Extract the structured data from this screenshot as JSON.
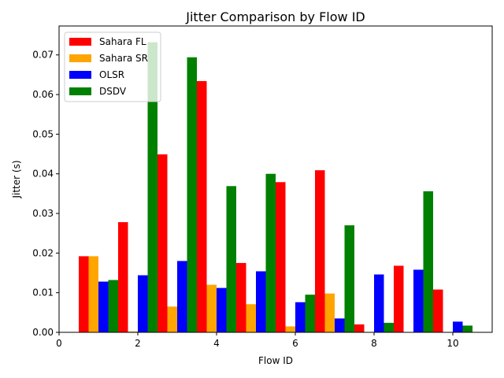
{
  "chart_data": {
    "type": "bar",
    "title": "Jitter Comparison by Flow ID",
    "xlabel": "Flow ID",
    "ylabel": "Jitter (s)",
    "xlim": [
      0,
      11
    ],
    "ylim": [
      0,
      0.0773
    ],
    "xticks": [
      0,
      2,
      4,
      6,
      8,
      10
    ],
    "xtick_labels": [
      "0",
      "2",
      "4",
      "6",
      "8",
      "10"
    ],
    "yticks": [
      0,
      0.01,
      0.02,
      0.03,
      0.04,
      0.05,
      0.06,
      0.07
    ],
    "ytick_labels": [
      "0.00",
      "0.01",
      "0.02",
      "0.03",
      "0.04",
      "0.05",
      "0.06",
      "0.07"
    ],
    "x": [
      1,
      2,
      3,
      4,
      5,
      6,
      7,
      8,
      9,
      10
    ],
    "bar_width": 0.25,
    "grid": false,
    "legend_position": "top-left",
    "series": [
      {
        "name": "Sahara FL",
        "color": "#ff0000",
        "values": [
          0.0192,
          0.0278,
          0.0449,
          0.0634,
          0.0175,
          0.0379,
          0.0409,
          0.002,
          0.0168,
          0.0108
        ]
      },
      {
        "name": "Sahara SR",
        "color": "#ffa500",
        "values": [
          0.0192,
          0.0002,
          0.0065,
          0.012,
          0.0071,
          0.0015,
          0.0098,
          0.0,
          0.0,
          0.0
        ]
      },
      {
        "name": "OLSR",
        "color": "#0000ff",
        "values": [
          0.0128,
          0.0144,
          0.018,
          0.0112,
          0.0154,
          0.0076,
          0.0035,
          0.0146,
          0.0158,
          0.0027
        ]
      },
      {
        "name": "DSDV",
        "color": "#008000",
        "values": [
          0.0132,
          0.0732,
          0.0694,
          0.0369,
          0.04,
          0.0095,
          0.027,
          0.0024,
          0.0356,
          0.0017
        ]
      }
    ]
  }
}
